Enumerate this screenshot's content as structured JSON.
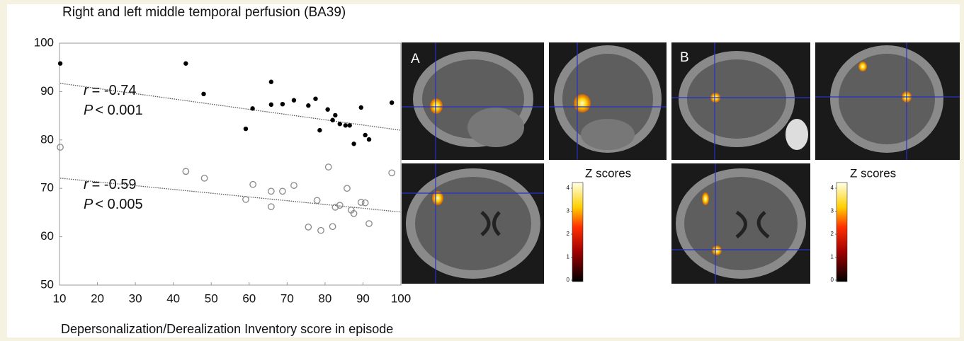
{
  "chart_data": {
    "type": "scatter",
    "title": "Right and left middle temporal perfusion (BA39)",
    "xlabel": "Depersonalization/Derealization Inventory score in episode",
    "xlim": [
      10,
      100
    ],
    "ylim": [
      50,
      100
    ],
    "xticks": [
      10,
      20,
      30,
      40,
      50,
      60,
      70,
      80,
      90,
      100
    ],
    "yticks": [
      50,
      60,
      70,
      80,
      90,
      100
    ],
    "series": [
      {
        "marker": "filled",
        "color": "#000000",
        "x": [
          10.2,
          43.3,
          48.0,
          59.1,
          60.9,
          65.8,
          65.8,
          68.8,
          71.8,
          75.6,
          77.5,
          78.6,
          80.7,
          82.0,
          82.7,
          83.9,
          85.4,
          86.5,
          87.6,
          89.5,
          90.6,
          91.6,
          97.6
        ],
        "y": [
          95.8,
          95.8,
          89.5,
          82.3,
          86.5,
          92.0,
          87.3,
          87.4,
          88.2,
          87.1,
          88.5,
          82.0,
          86.3,
          84.1,
          85.1,
          83.3,
          83.0,
          83.0,
          79.2,
          86.7,
          81.0,
          80.1,
          87.7
        ],
        "trend": {
          "x": [
            10.2,
            100
          ],
          "y": [
            91.7,
            82.0
          ]
        },
        "stat": {
          "r": "r",
          "r_text": "= -0.74",
          "p": "P",
          "p_text": "< 0.001"
        }
      },
      {
        "marker": "open",
        "color": "#888888",
        "x": [
          10.2,
          43.3,
          48.2,
          59.1,
          61.0,
          65.8,
          65.8,
          68.8,
          71.8,
          75.6,
          77.9,
          78.9,
          80.9,
          82.0,
          82.7,
          83.9,
          85.8,
          86.9,
          87.6,
          89.5,
          90.6,
          91.6,
          97.6
        ],
        "y": [
          78.5,
          73.5,
          72.1,
          67.7,
          70.8,
          69.4,
          66.2,
          69.4,
          70.6,
          62.0,
          67.5,
          61.3,
          74.4,
          62.1,
          66.1,
          66.5,
          70.0,
          65.5,
          64.8,
          67.1,
          67.0,
          62.7,
          73.2
        ],
        "trend": {
          "x": [
            10.2,
            100
          ],
          "y": [
            72.1,
            65.1
          ]
        },
        "stat": {
          "r": "r",
          "r_text": "= -0.59",
          "p": "P",
          "p_text": "< 0.005"
        }
      }
    ]
  },
  "figure": {
    "panels": [
      {
        "label": "A",
        "colorbar": {
          "label": "Z scores",
          "ticks": [
            0,
            1,
            2,
            3,
            4
          ]
        }
      },
      {
        "label": "B",
        "colorbar": {
          "label": "Z scores",
          "ticks": [
            0,
            1,
            2,
            3,
            4
          ]
        }
      }
    ]
  }
}
